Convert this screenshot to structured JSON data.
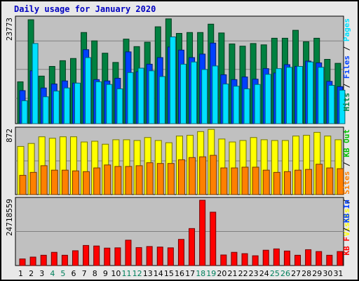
{
  "chart_data": {
    "title": "Daily usage for January 2020",
    "type": "bar",
    "days": [
      "1",
      "2",
      "3",
      "4",
      "5",
      "6",
      "7",
      "8",
      "9",
      "10",
      "11",
      "12",
      "13",
      "14",
      "15",
      "16",
      "17",
      "18",
      "19",
      "20",
      "21",
      "22",
      "23",
      "24",
      "25",
      "26",
      "27",
      "28",
      "29",
      "30",
      "31"
    ],
    "weekend_days": [
      "4",
      "5",
      "11",
      "12",
      "18",
      "19",
      "25",
      "26"
    ],
    "colors": {
      "hits": "#008040",
      "files": "#0040ff",
      "pages": "#00e0ff",
      "visits": "#ffff00",
      "sites": "#ff8000",
      "kbytes": "#ff0000",
      "weekday_label": "#000000",
      "weekend_label": "#00805c",
      "title": "#0000c0"
    },
    "panels": [
      {
        "id": "top",
        "ymax_label": "23773",
        "ylim": [
          0,
          23773
        ],
        "legend": [
          {
            "text": "Hits",
            "color": "#008040"
          },
          {
            "text": "/",
            "color": "#000000"
          },
          {
            "text": "Files",
            "color": "#0040ff"
          },
          {
            "text": "/",
            "color": "#000000"
          },
          {
            "text": "Pages",
            "color": "#00e0ff"
          }
        ],
        "series": [
          {
            "name": "Hits",
            "color": "#008040",
            "values": [
              9500,
              23600,
              10800,
              13000,
              14300,
              14800,
              20700,
              18800,
              16000,
              13900,
              19200,
              17500,
              18500,
              22000,
              23800,
              20500,
              20700,
              20700,
              22600,
              20600,
              18100,
              17600,
              18200,
              17900,
              19400,
              19400,
              21200,
              18600,
              19400,
              14600,
              13700
            ]
          },
          {
            "name": "Files",
            "color": "#0040ff",
            "values": [
              7500,
              12000,
              8100,
              9000,
              9700,
              9200,
              16800,
              10000,
              9700,
              10300,
              16300,
              11800,
              13500,
              15000,
              17400,
              16700,
              15000,
              15800,
              18300,
              11100,
              10000,
              10600,
              10100,
              12500,
              11500,
              13400,
              13000,
              14200,
              13800,
              9600,
              8400
            ]
          },
          {
            "name": "Pages",
            "color": "#00e0ff",
            "values": [
              5200,
              18200,
              6100,
              7400,
              8100,
              9200,
              15000,
              9500,
              8900,
              7900,
              11600,
              12600,
              12000,
              10700,
              19700,
              13500,
              14000,
              12300,
              13100,
              9000,
              8500,
              7900,
              8900,
              11200,
              12500,
              12800,
              13000,
              14000,
              12800,
              8700,
              7600
            ]
          }
        ]
      },
      {
        "id": "middle",
        "ymax_label": "872",
        "ylim": [
          0,
          872
        ],
        "legend": [
          {
            "text": "Visits",
            "color": "#ffff00"
          },
          {
            "text": "/",
            "color": "#000000"
          },
          {
            "text": "Sites",
            "color": "#ff8000"
          },
          {
            "text": "/",
            "color": "#000000"
          },
          {
            "text": "KB Out",
            "color": "#00c000"
          }
        ],
        "series": [
          {
            "name": "Visits",
            "color": "#ffff00",
            "values": [
              650,
              690,
              780,
              760,
              780,
              780,
              710,
              720,
              680,
              740,
              740,
              730,
              770,
              730,
              700,
              790,
              800,
              850,
              880,
              750,
              710,
              730,
              770,
              740,
              730,
              730,
              790,
              800,
              840,
              790,
              740
            ]
          },
          {
            "name": "Sites",
            "color": "#ff8000",
            "values": [
              260,
              300,
              390,
              330,
              330,
              320,
              310,
              360,
              400,
              380,
              380,
              390,
              430,
              420,
              420,
              470,
              500,
              510,
              530,
              360,
              360,
              370,
              370,
              330,
              300,
              310,
              330,
              340,
              410,
              360,
              350
            ]
          }
        ]
      },
      {
        "id": "bottom",
        "ymax_label": "24718559",
        "ylim": [
          0,
          24718559
        ],
        "legend": [
          {
            "text": "KB F",
            "color": "#ff0000"
          },
          {
            "text": "/",
            "color": "#000000"
          },
          {
            "text": "KB In",
            "color": "#0040ff"
          }
        ],
        "series": [
          {
            "name": "KB F",
            "color": "#ff0000",
            "values": [
              2500000,
              3200000,
              3900000,
              5000000,
              3900000,
              5600000,
              7600000,
              7400000,
              6600000,
              6700000,
              9600000,
              6800000,
              7200000,
              7000000,
              6700000,
              9900000,
              14000000,
              24700000,
              20200000,
              4000000,
              5000000,
              4500000,
              3700000,
              5800000,
              6300000,
              5500000,
              3900000,
              6000000,
              5300000,
              3900000,
              5300000
            ]
          }
        ]
      }
    ]
  }
}
